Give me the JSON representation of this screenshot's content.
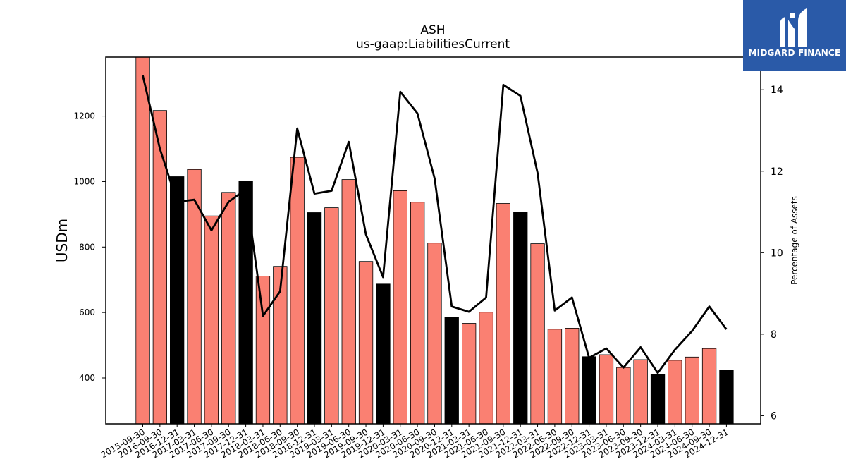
{
  "chart_data": {
    "type": "bar",
    "title": "ASH",
    "subtitle": "us-gaap:LiabilitiesCurrent",
    "ylabel": "USDm",
    "y2label": "Percentage of Assets",
    "ylim": [
      260,
      1380
    ],
    "y2lim": [
      5.8,
      14.8
    ],
    "yticks": [
      400,
      600,
      800,
      1000,
      1200
    ],
    "y2ticks": [
      6,
      8,
      10,
      12,
      14
    ],
    "grid": false,
    "categories": [
      "2015-09-30",
      "2016-09-30",
      "2016-12-31",
      "2017-03-31",
      "2017-06-30",
      "2017-09-30",
      "2017-12-31",
      "2018-03-31",
      "2018-06-30",
      "2018-09-30",
      "2018-12-31",
      "2019-03-31",
      "2019-06-30",
      "2019-09-30",
      "2019-12-31",
      "2020-03-31",
      "2020-06-30",
      "2020-09-30",
      "2020-12-31",
      "2021-03-31",
      "2021-06-30",
      "2021-09-30",
      "2021-12-31",
      "2022-03-31",
      "2022-06-30",
      "2022-09-30",
      "2022-12-31",
      "2023-03-31",
      "2023-06-30",
      "2023-09-30",
      "2023-12-31",
      "2024-03-31",
      "2024-06-30",
      "2024-09-30",
      "2024-12-31"
    ],
    "series": [
      {
        "kind": "bar",
        "values": [
          1380,
          1217,
          1015,
          1037,
          895,
          967,
          1002,
          711,
          741,
          1074,
          905,
          920,
          1006,
          756,
          687,
          972,
          937,
          812,
          585,
          567,
          601,
          933,
          906,
          810,
          549,
          552,
          465,
          471,
          432,
          456,
          412,
          454,
          464,
          490,
          425
        ],
        "highlight": [
          false,
          false,
          true,
          false,
          false,
          false,
          true,
          false,
          false,
          false,
          true,
          false,
          false,
          false,
          true,
          false,
          false,
          false,
          true,
          false,
          false,
          false,
          true,
          false,
          false,
          false,
          true,
          false,
          false,
          false,
          true,
          false,
          false,
          false,
          true
        ]
      },
      {
        "kind": "line",
        "axis": "right",
        "values": [
          14.35,
          12.55,
          11.25,
          11.3,
          10.55,
          11.25,
          11.55,
          8.45,
          9.05,
          13.05,
          11.45,
          11.52,
          12.72,
          10.45,
          9.4,
          13.95,
          13.42,
          11.82,
          8.68,
          8.55,
          8.9,
          14.12,
          13.85,
          11.95,
          8.58,
          8.9,
          7.42,
          7.65,
          7.18,
          7.68,
          7.05,
          7.62,
          8.08,
          8.68,
          8.12
        ]
      }
    ],
    "colors": {
      "bar": "#fa8072",
      "highlight": "#000000",
      "line": "#000000"
    }
  },
  "logo": {
    "text": "MIDGARD FINANCE",
    "background": "#2a5aa8"
  }
}
